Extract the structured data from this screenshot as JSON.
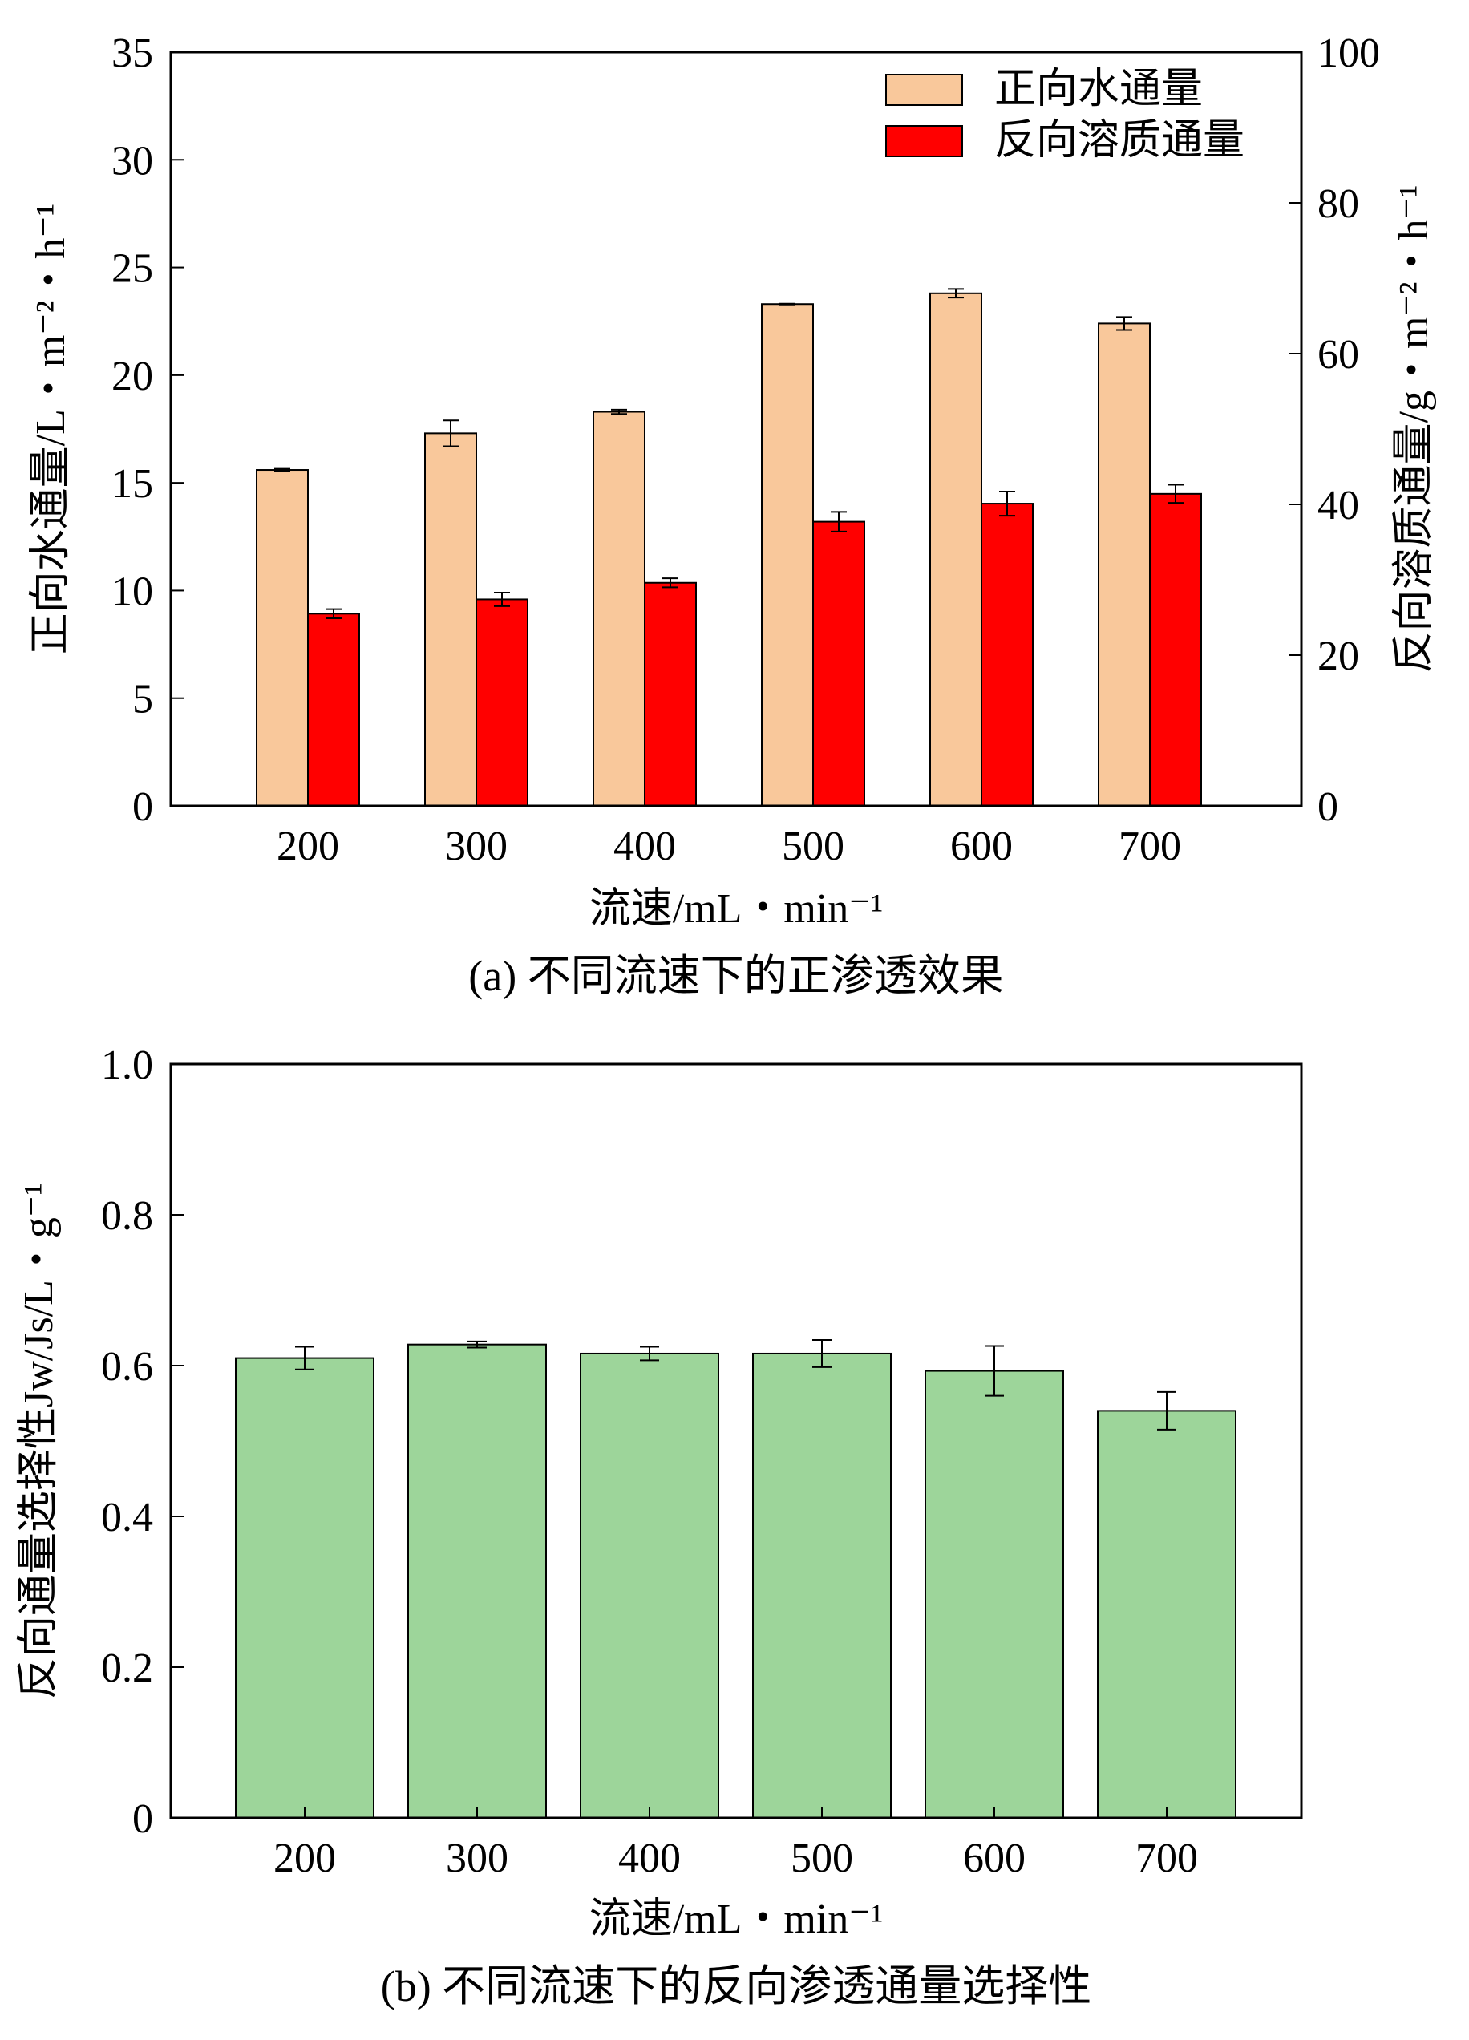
{
  "chart_data": [
    {
      "type": "bar",
      "caption": "(a) 不同流速下的正渗透效果",
      "xlabel": "流速/mL・min⁻¹",
      "categories": [
        "200",
        "300",
        "400",
        "500",
        "600",
        "700"
      ],
      "ylabel_left": "正向水通量/L・m⁻²・h⁻¹",
      "ylabel_right": "反向溶质通量/g・m⁻²・h⁻¹",
      "ylim_left": [
        0,
        35
      ],
      "yticks_left": [
        "0",
        "5",
        "10",
        "15",
        "20",
        "25",
        "30",
        "35"
      ],
      "ylim_right": [
        0,
        100
      ],
      "yticks_right": [
        "0",
        "20",
        "40",
        "60",
        "80",
        "100"
      ],
      "legend_position": "top-right",
      "series": [
        {
          "name": "正向水通量",
          "axis": "left",
          "color": "#F9C89B",
          "values": [
            15.6,
            17.3,
            18.3,
            23.3,
            23.8,
            22.4
          ],
          "errors": [
            0.05,
            0.6,
            0.1,
            0.02,
            0.2,
            0.3
          ]
        },
        {
          "name": "反向溶质通量",
          "axis": "right",
          "color": "#FF0000",
          "values": [
            25.5,
            27.4,
            29.6,
            37.7,
            40.1,
            41.4
          ],
          "errors": [
            0.6,
            0.9,
            0.6,
            1.3,
            1.6,
            1.2
          ]
        }
      ]
    },
    {
      "type": "bar",
      "caption": "(b) 不同流速下的反向渗透通量选择性",
      "xlabel": "流速/mL・min⁻¹",
      "categories": [
        "200",
        "300",
        "400",
        "500",
        "600",
        "700"
      ],
      "ylabel": "反向通量选择性Jw/Js/L・g⁻¹",
      "ylim": [
        0,
        1.0
      ],
      "yticks": [
        "0",
        "0.2",
        "0.4",
        "0.6",
        "0.8",
        "1.0"
      ],
      "series": [
        {
          "color": "#9DD59A",
          "values": [
            0.61,
            0.628,
            0.616,
            0.616,
            0.593,
            0.54
          ],
          "errors": [
            0.015,
            0.004,
            0.009,
            0.018,
            0.033,
            0.025
          ]
        }
      ]
    }
  ]
}
